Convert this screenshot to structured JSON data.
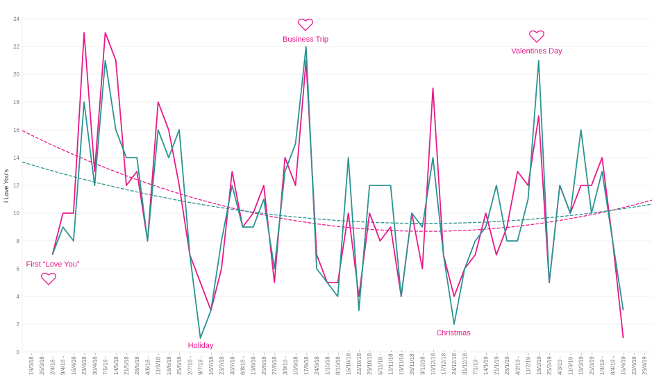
{
  "chart_data": {
    "type": "line",
    "title": "",
    "xlabel": "",
    "ylabel": "I Love You's",
    "ylim": [
      0,
      24
    ],
    "yticks": [
      0,
      2,
      4,
      6,
      8,
      10,
      12,
      14,
      16,
      18,
      20,
      22,
      24
    ],
    "grid": true,
    "legend": "none",
    "trendlines": "polynomial (dashed), one per series",
    "categories": [
      "19/3/18",
      "26/3/18",
      "2/4/18",
      "9/4/18",
      "16/4/18",
      "23/4/18",
      "30/4/18",
      "7/5/18",
      "14/5/18",
      "21/5/18",
      "28/5/18",
      "4/6/18",
      "11/6/18",
      "18/6/18",
      "25/6/18",
      "2/7/18",
      "9/7/18",
      "16/7/18",
      "23/7/18",
      "30/7/18",
      "6/8/18",
      "13/8/18",
      "20/8/18",
      "27/8/18",
      "3/9/18",
      "10/9/18",
      "17/9/18",
      "24/9/18",
      "1/10/18",
      "8/10/18",
      "15/10/18",
      "22/10/18",
      "29/10/18",
      "5/11/18",
      "12/11/18",
      "19/11/18",
      "26/11/18",
      "3/12/18",
      "10/12/18",
      "17/12/18",
      "24/12/18",
      "31/12/18",
      "7/1/19",
      "14/1/19",
      "21/1/19",
      "28/1/19",
      "4/2/19",
      "11/2/19",
      "18/2/19",
      "25/2/19",
      "4/3/19",
      "11/3/19",
      "18/3/19",
      "25/3/19",
      "1/4/19",
      "8/4/19",
      "15/4/19",
      "22/4/19",
      "29/4/19"
    ],
    "series": [
      {
        "color": "#e8198b",
        "values": [
          null,
          null,
          7,
          10,
          10,
          23,
          13,
          23,
          21,
          12,
          13,
          8,
          18,
          16,
          12,
          7,
          5,
          3,
          6,
          13,
          9,
          10,
          12,
          5,
          14,
          12,
          21,
          7,
          5,
          5,
          10,
          4,
          10,
          8,
          9,
          4,
          10,
          6,
          19,
          7,
          4,
          6,
          7,
          10,
          7,
          9,
          13,
          12,
          17,
          5,
          12,
          10,
          12,
          12,
          14,
          8,
          1,
          null,
          null
        ]
      },
      {
        "color": "#2a9490",
        "values": [
          null,
          null,
          7,
          9,
          8,
          18,
          12,
          21,
          16,
          14,
          14,
          8,
          16,
          14,
          16,
          7,
          1,
          3,
          8,
          12,
          9,
          9,
          11,
          6,
          13,
          15,
          22,
          6,
          5,
          4,
          14,
          3,
          12,
          12,
          12,
          4,
          10,
          9,
          14,
          7,
          2,
          6,
          8,
          9,
          12,
          8,
          8,
          11,
          21,
          5,
          12,
          10,
          16,
          10,
          13,
          8,
          3,
          null,
          null
        ]
      }
    ],
    "annotations": [
      {
        "text": "First “Love You”",
        "icon": "heart-icon",
        "category": "2/4/18",
        "value": 7
      },
      {
        "text": "Holiday",
        "category": "9/7/18",
        "value": 1
      },
      {
        "text": "Business Trip",
        "icon": "heart-icon",
        "category": "17/9/18",
        "value": 22
      },
      {
        "text": "Christmas",
        "category": "24/12/18",
        "value": 2
      },
      {
        "text": "Valentines Day",
        "icon": "heart-icon",
        "category": "18/2/19",
        "value": 21
      }
    ]
  }
}
